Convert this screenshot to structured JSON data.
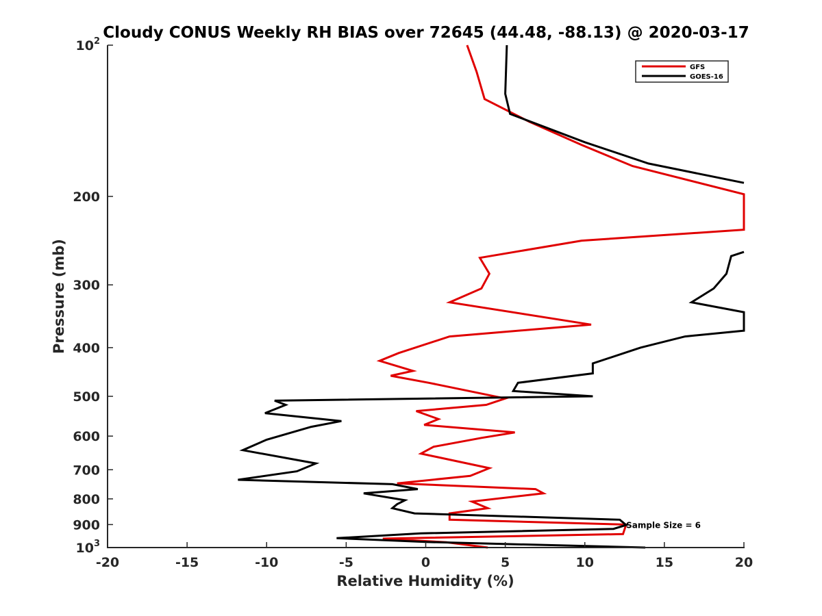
{
  "chart_data": {
    "type": "line",
    "title": "Cloudy CONUS Weekly RH BIAS over 72645 (44.48, -88.13) @ 2020-03-17",
    "xlabel": "Relative Humidity (%)",
    "ylabel": "Pressure (mb)",
    "xlim": [
      -20,
      20
    ],
    "ylim": [
      100,
      1000
    ],
    "y_scale": "log",
    "y_reversed": true,
    "grid": false,
    "legend_position": "top-right",
    "x_ticks": [
      -20,
      -15,
      -10,
      -5,
      0,
      5,
      10,
      15,
      20
    ],
    "x_tick_labels": [
      "-20",
      "-15",
      "-10",
      "-5",
      "0",
      "5",
      "10",
      "15",
      "20"
    ],
    "y_ticks": [
      {
        "value": 100,
        "base": "10",
        "exp": "2"
      },
      {
        "value": 200,
        "base": "200",
        "exp": ""
      },
      {
        "value": 300,
        "base": "300",
        "exp": ""
      },
      {
        "value": 400,
        "base": "400",
        "exp": ""
      },
      {
        "value": 500,
        "base": "500",
        "exp": ""
      },
      {
        "value": 600,
        "base": "600",
        "exp": ""
      },
      {
        "value": 700,
        "base": "700",
        "exp": ""
      },
      {
        "value": 800,
        "base": "800",
        "exp": ""
      },
      {
        "value": 900,
        "base": "900",
        "exp": ""
      },
      {
        "value": 1000,
        "base": "10",
        "exp": "3"
      }
    ],
    "annotation": {
      "text": "Sample Size = 6",
      "x": 12.6,
      "y": 900
    },
    "series": [
      {
        "name": "GFS",
        "color": "#e00000",
        "points": [
          [
            1000,
            3.9
          ],
          [
            976,
            1.3
          ],
          [
            960,
            -2.7
          ],
          [
            940,
            12.4
          ],
          [
            900,
            12.6
          ],
          [
            880,
            1.5
          ],
          [
            855,
            1.5
          ],
          [
            835,
            3.9
          ],
          [
            810,
            2.9
          ],
          [
            780,
            7.4
          ],
          [
            765,
            6.9
          ],
          [
            745,
            -1.8
          ],
          [
            720,
            2.8
          ],
          [
            695,
            4.0
          ],
          [
            650,
            -0.3
          ],
          [
            630,
            0.5
          ],
          [
            605,
            3.5
          ],
          [
            590,
            5.6
          ],
          [
            570,
            -0.1
          ],
          [
            555,
            0.8
          ],
          [
            535,
            -0.6
          ],
          [
            520,
            3.8
          ],
          [
            505,
            5.0
          ],
          [
            470,
            0.2
          ],
          [
            455,
            -2.2
          ],
          [
            445,
            -0.8
          ],
          [
            425,
            -2.9
          ],
          [
            410,
            -1.7
          ],
          [
            380,
            1.5
          ],
          [
            360,
            10.4
          ],
          [
            325,
            1.5
          ],
          [
            305,
            3.5
          ],
          [
            285,
            4.0
          ],
          [
            265,
            3.4
          ],
          [
            245,
            9.8
          ],
          [
            233,
            20.0
          ],
          [
            198,
            20.0
          ],
          [
            174,
            13.0
          ],
          [
            158,
            9.8
          ],
          [
            142,
            6.5
          ],
          [
            128,
            3.7
          ],
          [
            113,
            3.2
          ],
          [
            100,
            2.6
          ]
        ]
      },
      {
        "name": "GOES-16",
        "color": "#000000",
        "points": [
          [
            1000,
            13.8
          ],
          [
            975,
            0.1
          ],
          [
            958,
            -5.6
          ],
          [
            937,
            -0.3
          ],
          [
            918,
            11.8
          ],
          [
            902,
            12.6
          ],
          [
            880,
            12.2
          ],
          [
            855,
            -0.7
          ],
          [
            835,
            -2.1
          ],
          [
            820,
            -1.8
          ],
          [
            805,
            -1.3
          ],
          [
            780,
            -3.9
          ],
          [
            765,
            -0.5
          ],
          [
            748,
            -2.1
          ],
          [
            733,
            -11.8
          ],
          [
            705,
            -8.1
          ],
          [
            680,
            -6.9
          ],
          [
            640,
            -11.5
          ],
          [
            610,
            -10.0
          ],
          [
            575,
            -7.2
          ],
          [
            560,
            -5.3
          ],
          [
            540,
            -10.1
          ],
          [
            520,
            -8.8
          ],
          [
            510,
            -9.5
          ],
          [
            500,
            10.5
          ],
          [
            488,
            5.5
          ],
          [
            470,
            5.8
          ],
          [
            450,
            10.5
          ],
          [
            430,
            10.5
          ],
          [
            400,
            13.5
          ],
          [
            380,
            16.3
          ],
          [
            370,
            20.0
          ],
          [
            340,
            20.0
          ],
          [
            325,
            16.7
          ],
          [
            305,
            18.1
          ],
          [
            285,
            18.9
          ],
          [
            263,
            19.2
          ],
          [
            258,
            20.0
          ]
        ],
        "upper_points": [
          [
            188,
            20.0
          ],
          [
            172,
            14.0
          ],
          [
            156,
            10.0
          ],
          [
            137,
            5.3
          ],
          [
            125,
            5.0
          ],
          [
            100,
            5.1
          ]
        ]
      }
    ]
  }
}
